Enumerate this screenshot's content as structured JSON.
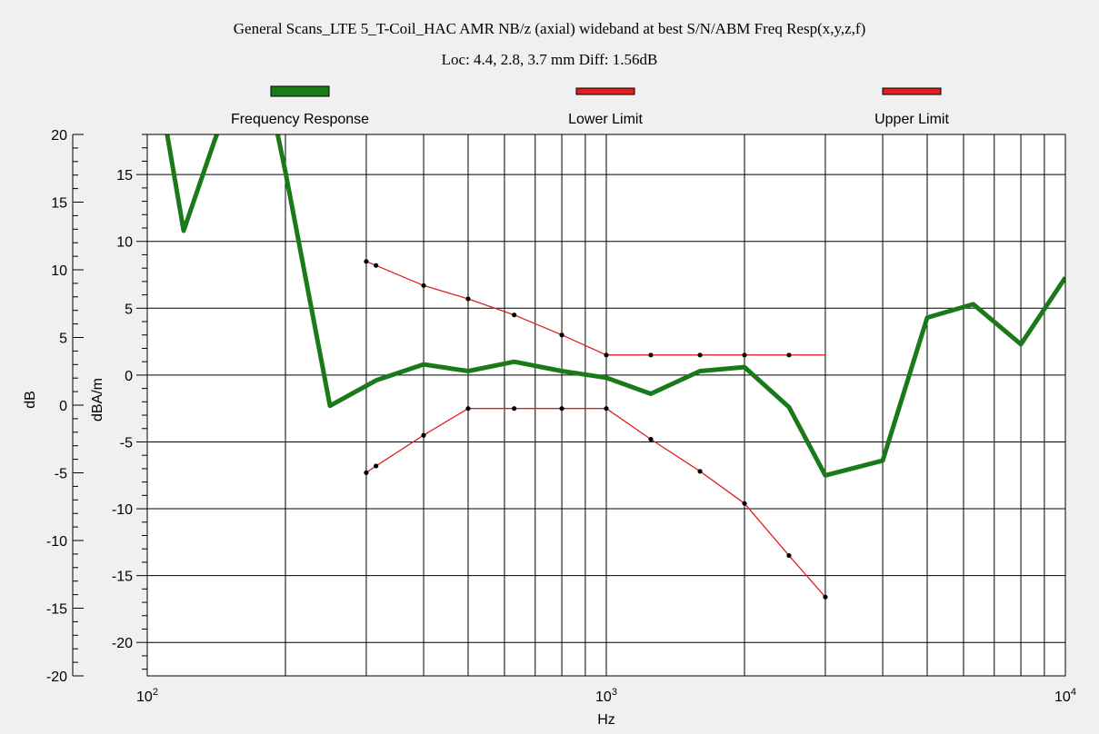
{
  "title": "General Scans_LTE 5_T-Coil_HAC AMR NB/z (axial) wideband at best S/N/ABM Freq Resp(x,y,z,f)",
  "subtitle": "Loc: 4.4, 2.8, 3.7 mm Diff: 1.56dB",
  "chart_data": {
    "type": "line",
    "title": "General Scans_LTE 5_T-Coil_HAC AMR NB/z (axial) wideband at best S/N/ABM Freq Resp(x,y,z,f)",
    "subtitle": "Loc: 4.4, 2.8, 3.7 mm Diff: 1.56dB",
    "xlabel": "Hz",
    "ylabel_left": "dB",
    "ylabel_right": "dBA/m",
    "x_scale": "log",
    "xlim": [
      100,
      10000
    ],
    "x_ticks": [
      {
        "base": "10",
        "exp": "2"
      },
      {
        "base": "10",
        "exp": "3"
      },
      {
        "base": "10",
        "exp": "4"
      }
    ],
    "left_axis": {
      "ylim": [
        -20,
        20
      ],
      "ticks": [
        "20",
        "15",
        "10",
        "5",
        "0",
        "-5",
        "-10",
        "-15",
        "-20"
      ]
    },
    "right_axis": {
      "ylim": [
        -22.5,
        18
      ],
      "ticks": [
        "15",
        "10",
        "5",
        "0",
        "-5",
        "-10",
        "-15",
        "-20"
      ]
    },
    "grid": true,
    "legend_placement": "top",
    "series": [
      {
        "name": "Frequency Response",
        "color": "#1a7a1a",
        "markers": false,
        "x": [
          108,
          120,
          140,
          160,
          185,
          200,
          250,
          315,
          400,
          500,
          630,
          800,
          1000,
          1250,
          1600,
          2000,
          2500,
          3000,
          4000,
          5000,
          6300,
          8000,
          10000
        ],
        "y": [
          20,
          10.8,
          17.5,
          22.8,
          20.8,
          15.2,
          -2.3,
          -0.4,
          0.8,
          0.3,
          1.0,
          0.3,
          -0.2,
          -1.4,
          0.3,
          0.6,
          -2.4,
          -7.5,
          -6.4,
          4.3,
          5.3,
          2.3,
          7.3
        ]
      },
      {
        "name": "Lower Limit",
        "color": "#e02020",
        "markers": true,
        "x": [
          300,
          315,
          400,
          500,
          630,
          800,
          1000,
          1250,
          1600,
          2000,
          2500,
          3000
        ],
        "y": [
          -7.3,
          -6.8,
          -4.5,
          -2.5,
          -2.5,
          -2.5,
          -2.5,
          -4.8,
          -7.2,
          -9.6,
          -13.5,
          -16.6
        ]
      },
      {
        "name": "Upper Limit",
        "color": "#e02020",
        "markers": true,
        "x": [
          300,
          315,
          400,
          500,
          630,
          800,
          1000,
          1250,
          1600,
          2000,
          2500,
          3000
        ],
        "y": [
          8.5,
          8.2,
          6.7,
          5.7,
          4.5,
          3.0,
          1.5,
          1.5,
          1.5,
          1.5,
          1.5,
          1.5
        ],
        "marker_x": [
          300,
          315,
          400,
          500,
          630,
          800,
          1000,
          1250,
          1600,
          2000,
          2500
        ]
      }
    ]
  }
}
